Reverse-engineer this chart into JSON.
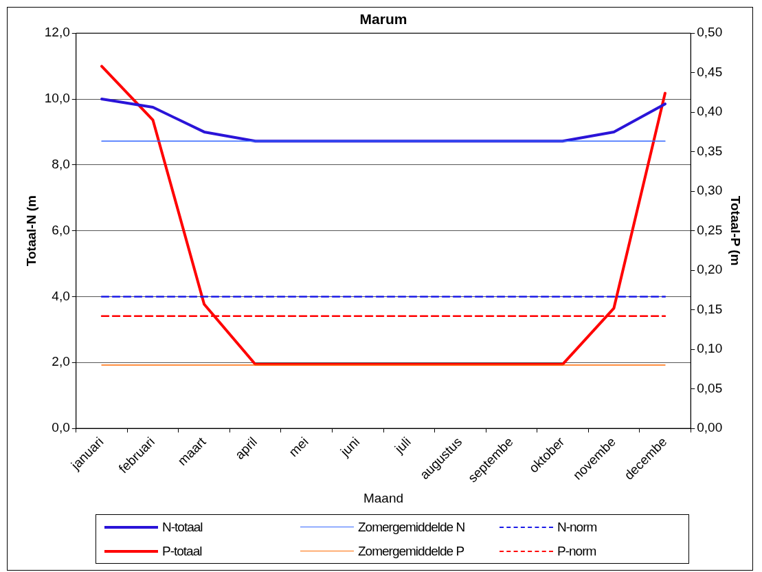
{
  "chart_data": {
    "type": "line",
    "title": "Marum",
    "xlabel": "Maand",
    "ylabel": "Totaal-N (m",
    "y2label": "Totaal-P (m",
    "categories": [
      "januari",
      "februari",
      "maart",
      "april",
      "mei",
      "juni",
      "juli",
      "augustus",
      "septembe",
      "oktober",
      "novembe",
      "decembe"
    ],
    "series": [
      {
        "name": "N-totaal",
        "color": "#2a14d8",
        "values": [
          10.0,
          9.75,
          9.0,
          8.72,
          8.72,
          8.72,
          8.72,
          8.72,
          8.72,
          8.72,
          9.0,
          9.85
        ]
      },
      {
        "name": "Zomergemiddelde N",
        "color": "#3366ff",
        "values": [
          8.72,
          8.72,
          8.72,
          8.72,
          8.72,
          8.72,
          8.72,
          8.72,
          8.72,
          8.72,
          8.72,
          8.72
        ]
      },
      {
        "name": "N-norm",
        "color": "#1a1ae6",
        "line_style": "dashed",
        "values": [
          4.0,
          4.0,
          4.0,
          4.0,
          4.0,
          4.0,
          4.0,
          4.0,
          4.0,
          4.0,
          4.0,
          4.0
        ]
      },
      {
        "name": "P-totaal",
        "color": "#ff0000",
        "axis": "y2",
        "values": [
          0.458,
          0.39,
          0.157,
          0.081,
          0.081,
          0.081,
          0.081,
          0.081,
          0.081,
          0.081,
          0.152,
          0.424
        ]
      },
      {
        "name": "Zomergemiddelde P",
        "color": "#ff6a00",
        "axis": "y2",
        "values": [
          0.08,
          0.08,
          0.08,
          0.08,
          0.08,
          0.08,
          0.08,
          0.08,
          0.08,
          0.08,
          0.08,
          0.08
        ]
      },
      {
        "name": "P-norm",
        "color": "#ff0000",
        "axis": "y2",
        "line_style": "dashed",
        "values": [
          0.142,
          0.142,
          0.142,
          0.142,
          0.142,
          0.142,
          0.142,
          0.142,
          0.142,
          0.142,
          0.142,
          0.142
        ]
      }
    ],
    "ylim": [
      0,
      12
    ],
    "yticks": [
      {
        "value": 0,
        "label": "0,0"
      },
      {
        "value": 2,
        "label": "2,0"
      },
      {
        "value": 4,
        "label": "4,0"
      },
      {
        "value": 6,
        "label": "6,0"
      },
      {
        "value": 8,
        "label": "8,0"
      },
      {
        "value": 10,
        "label": "10,0"
      },
      {
        "value": 12,
        "label": "12,0"
      }
    ],
    "y2lim": [
      0,
      0.5
    ],
    "y2ticks": [
      {
        "value": 0,
        "label": "0,00"
      },
      {
        "value": 0.05,
        "label": "0,05"
      },
      {
        "value": 0.1,
        "label": "0,10"
      },
      {
        "value": 0.15,
        "label": "0,15"
      },
      {
        "value": 0.2,
        "label": "0,20"
      },
      {
        "value": 0.25,
        "label": "0,25"
      },
      {
        "value": 0.3,
        "label": "0,30"
      },
      {
        "value": 0.35,
        "label": "0,35"
      },
      {
        "value": 0.4,
        "label": "0,40"
      },
      {
        "value": 0.45,
        "label": "0,45"
      },
      {
        "value": 0.5,
        "label": "0,50"
      }
    ],
    "grid": "y",
    "legend": "bottom",
    "marker": "none",
    "line_style": "solid"
  }
}
